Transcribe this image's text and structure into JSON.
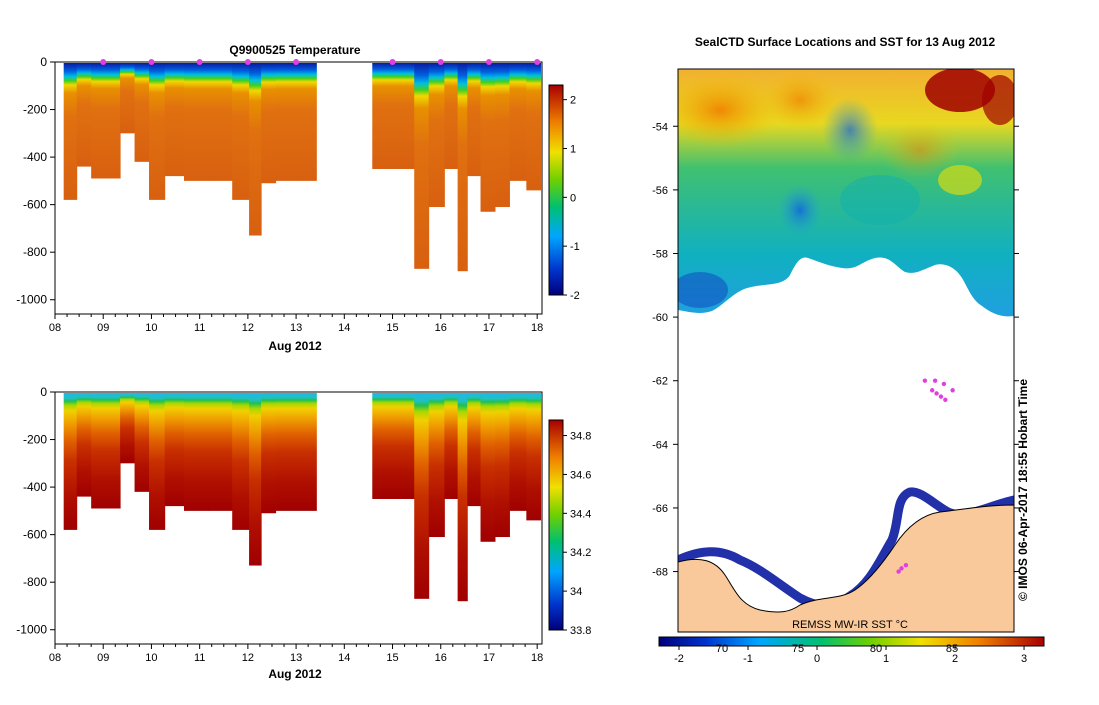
{
  "colors": {
    "land": "#f9c99b",
    "marker": "#e040e0",
    "coast_line": "#000000"
  },
  "chart_data": [
    {
      "type": "heatmap",
      "title": "Q9900525  Temperature",
      "xlabel": "Aug 2012",
      "x_ticks": [
        "08",
        "09",
        "10",
        "11",
        "12",
        "13",
        "14",
        "15",
        "16",
        "17",
        "18"
      ],
      "xlim": [
        8,
        18.1
      ],
      "ylim": [
        -1060,
        0
      ],
      "y_ticks": [
        0,
        -200,
        -400,
        -600,
        -800,
        -1000
      ],
      "colorbar": {
        "min": -2,
        "max": 2.3,
        "ticks": [
          2,
          1,
          0,
          -1,
          -2
        ]
      },
      "profile_markers": [
        9,
        10,
        11,
        12,
        13,
        15,
        16,
        17,
        18
      ],
      "profile_depths": [
        [
          8.3,
          580
        ],
        [
          8.6,
          440
        ],
        [
          8.9,
          490
        ],
        [
          9.2,
          490
        ],
        [
          9.5,
          300
        ],
        [
          9.8,
          420
        ],
        [
          10.1,
          580
        ],
        [
          10.45,
          480
        ],
        [
          10.9,
          500
        ],
        [
          11.45,
          500
        ],
        [
          11.9,
          580
        ],
        [
          12.15,
          730
        ],
        [
          12.4,
          510
        ],
        [
          12.75,
          500
        ],
        [
          13.3,
          500
        ],
        [
          14.7,
          450
        ],
        [
          15.3,
          450
        ],
        [
          15.6,
          870
        ],
        [
          15.9,
          610
        ],
        [
          16.25,
          450
        ],
        [
          16.45,
          880
        ],
        [
          16.65,
          480
        ],
        [
          17.0,
          630
        ],
        [
          17.25,
          610
        ],
        [
          17.6,
          500
        ],
        [
          17.95,
          540
        ]
      ],
      "data_gap": [
        13.35,
        14.65
      ]
    },
    {
      "type": "heatmap",
      "title": "",
      "xlabel": "Aug 2012",
      "x_ticks": [
        "08",
        "09",
        "10",
        "11",
        "12",
        "13",
        "14",
        "15",
        "16",
        "17",
        "18"
      ],
      "xlim": [
        8,
        18.1
      ],
      "ylim": [
        -1060,
        0
      ],
      "y_ticks": [
        0,
        -200,
        -400,
        -600,
        -800,
        -1000
      ],
      "colorbar": {
        "min": 33.8,
        "max": 34.88,
        "ticks": [
          "34.8",
          "34.6",
          "34.4",
          "34.2",
          "34",
          "33.8"
        ]
      },
      "profile_depths": [
        [
          8.3,
          580
        ],
        [
          8.6,
          440
        ],
        [
          8.9,
          490
        ],
        [
          9.2,
          490
        ],
        [
          9.5,
          300
        ],
        [
          9.8,
          420
        ],
        [
          10.1,
          580
        ],
        [
          10.45,
          480
        ],
        [
          10.9,
          500
        ],
        [
          11.45,
          500
        ],
        [
          11.9,
          580
        ],
        [
          12.15,
          730
        ],
        [
          12.4,
          510
        ],
        [
          12.75,
          500
        ],
        [
          13.3,
          500
        ],
        [
          14.7,
          450
        ],
        [
          15.3,
          450
        ],
        [
          15.6,
          870
        ],
        [
          15.9,
          610
        ],
        [
          16.25,
          450
        ],
        [
          16.45,
          880
        ],
        [
          16.65,
          480
        ],
        [
          17.0,
          630
        ],
        [
          17.25,
          610
        ],
        [
          17.6,
          500
        ],
        [
          17.95,
          540
        ]
      ],
      "data_gap": [
        13.35,
        14.65
      ]
    },
    {
      "type": "heatmap",
      "title": "SealCTD Surface Locations and SST for 13 Aug 2012",
      "y_ticks": [
        -54,
        -56,
        -58,
        -60,
        -62,
        -64,
        -66,
        -68
      ],
      "lat_range": [
        -69.9,
        -52.2
      ],
      "colorbar": {
        "label": "REMSS MW-IR SST °C",
        "min": -2,
        "max": 3.3,
        "ticks": [
          "-2",
          "-1",
          "0",
          "1",
          "2",
          "3"
        ]
      },
      "lon_ticks": [
        "70",
        "75",
        "80",
        "85"
      ],
      "side_label": "© IMOS 06-Apr-2017 18:55 Hobart Time",
      "seal_locations": [
        [
          82.9,
          -62.0
        ],
        [
          83.6,
          -62.0
        ],
        [
          84.2,
          -62.1
        ],
        [
          84.8,
          -62.3
        ],
        [
          83.4,
          -62.3
        ],
        [
          84.0,
          -62.5
        ],
        [
          84.3,
          -62.6
        ],
        [
          83.7,
          -62.4
        ],
        [
          81.6,
          -67.8
        ],
        [
          81.3,
          -67.9
        ],
        [
          81.1,
          -68.0
        ]
      ]
    }
  ]
}
